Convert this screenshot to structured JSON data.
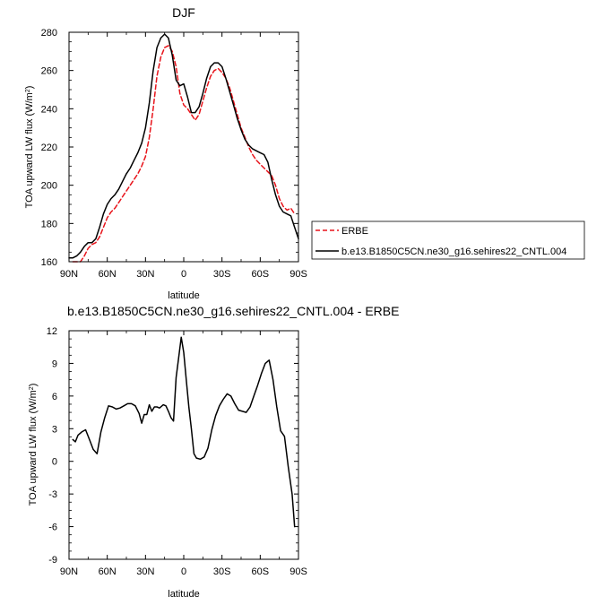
{
  "chart_data": [
    {
      "type": "line",
      "title": "DJF",
      "xlabel": "latitude",
      "ylabel": "TOA upward LW flux (W/m",
      "ylabel_sup": "2",
      "ylabel_close": ")",
      "xlim": [
        -90,
        90
      ],
      "ylim": [
        160,
        280
      ],
      "xticks": [
        -90,
        -60,
        -30,
        0,
        30,
        60,
        90
      ],
      "xtick_labels": [
        "90N",
        "60N",
        "30N",
        "0",
        "30S",
        "60S",
        "90S"
      ],
      "yticks": [
        160,
        180,
        200,
        220,
        240,
        260,
        280
      ],
      "ytick_labels": [
        "160",
        "180",
        "200",
        "220",
        "240",
        "260",
        "280"
      ],
      "legend_position": "right",
      "series": [
        {
          "name": "ERBE",
          "color": "#e8141b",
          "dash": "dashed",
          "x": [
            -87,
            -84,
            -81,
            -78,
            -75,
            -72,
            -69,
            -66,
            -63,
            -60,
            -57,
            -54,
            -51,
            -48,
            -45,
            -42,
            -39,
            -36,
            -33,
            -30,
            -27,
            -24,
            -21,
            -18,
            -15,
            -12,
            -9,
            -6,
            -3,
            0,
            3,
            6,
            9,
            12,
            15,
            18,
            21,
            24,
            27,
            30,
            33,
            36,
            39,
            42,
            45,
            48,
            51,
            54,
            57,
            60,
            63,
            66,
            69,
            72,
            75,
            78,
            81,
            84,
            87
          ],
          "y": [
            160,
            160,
            160,
            163,
            167,
            169,
            170,
            173,
            178,
            183,
            186,
            188,
            191,
            194,
            197,
            200,
            203,
            206,
            210,
            215,
            225,
            240,
            257,
            267,
            272,
            273,
            270,
            262,
            248,
            242,
            240,
            237,
            234,
            237,
            244,
            251,
            257,
            260,
            261,
            259,
            256,
            251,
            244,
            237,
            230,
            225,
            220,
            216,
            213,
            211,
            209,
            207,
            205,
            200,
            193,
            189,
            187,
            188,
            185
          ]
        },
        {
          "name": "b.e13.B1850C5CN.ne30_g16.sehires22_CNTL.004",
          "color": "#000000",
          "dash": "solid",
          "x": [
            -90,
            -87,
            -84,
            -81,
            -78,
            -75,
            -72,
            -69,
            -66,
            -63,
            -60,
            -57,
            -54,
            -51,
            -48,
            -45,
            -42,
            -39,
            -36,
            -33,
            -30,
            -27,
            -24,
            -21,
            -18,
            -15,
            -12,
            -9,
            -6,
            -3,
            0,
            3,
            6,
            9,
            12,
            15,
            18,
            21,
            24,
            27,
            30,
            33,
            36,
            39,
            42,
            45,
            48,
            51,
            54,
            57,
            60,
            63,
            66,
            69,
            72,
            75,
            78,
            81,
            84,
            87,
            90
          ],
          "y": [
            162,
            162,
            163,
            165,
            168,
            170,
            170,
            172,
            178,
            185,
            190,
            193,
            195,
            198,
            202,
            206,
            209,
            213,
            217,
            222,
            230,
            243,
            260,
            272,
            277,
            279,
            277,
            268,
            255,
            252,
            253,
            246,
            238,
            238,
            241,
            248,
            256,
            262,
            264,
            264,
            262,
            256,
            249,
            242,
            235,
            229,
            224,
            221,
            219,
            218,
            217,
            216,
            212,
            203,
            195,
            189,
            186,
            185,
            184,
            178,
            172
          ]
        }
      ]
    },
    {
      "type": "line",
      "title": "b.e13.B1850C5CN.ne30_g16.sehires22_CNTL.004 - ERBE",
      "xlabel": "latitude",
      "ylabel": "TOA upward LW flux (W/m",
      "ylabel_sup": "2",
      "ylabel_close": ")",
      "xlim": [
        -90,
        90
      ],
      "ylim": [
        -9,
        12
      ],
      "xticks": [
        -90,
        -60,
        -30,
        0,
        30,
        60,
        90
      ],
      "xtick_labels": [
        "90N",
        "60N",
        "30N",
        "0",
        "30S",
        "60S",
        "90S"
      ],
      "yticks": [
        -9,
        -6,
        -3,
        0,
        3,
        6,
        9,
        12
      ],
      "ytick_labels": [
        "-9",
        "-6",
        "-3",
        "0",
        "3",
        "6",
        "9",
        "12"
      ],
      "series": [
        {
          "color": "#000000",
          "dash": "solid",
          "x": [
            -87,
            -85,
            -83,
            -80,
            -77,
            -74,
            -71,
            -68,
            -65,
            -62,
            -59,
            -56,
            -53,
            -50,
            -47,
            -44,
            -41,
            -38,
            -35,
            -33,
            -31,
            -29,
            -27,
            -25,
            -23,
            -21,
            -19,
            -16,
            -14,
            -12,
            -10,
            -8,
            -6,
            -4,
            -2,
            0,
            2,
            4,
            6,
            8,
            10,
            13,
            16,
            19,
            22,
            25,
            28,
            31,
            34,
            37,
            40,
            43,
            46,
            49,
            52,
            55,
            58,
            61,
            64,
            67,
            70,
            73,
            76,
            79,
            82,
            85,
            87
          ],
          "y": [
            2.0,
            1.8,
            2.4,
            2.7,
            2.9,
            2.0,
            1.1,
            0.7,
            2.7,
            4.0,
            5.1,
            5.0,
            4.8,
            4.9,
            5.1,
            5.3,
            5.3,
            5.1,
            4.4,
            3.5,
            4.3,
            4.3,
            5.2,
            4.6,
            5.0,
            5.0,
            4.9,
            5.2,
            5.1,
            4.6,
            4.0,
            3.7,
            7.7,
            9.5,
            11.4,
            10.0,
            7.5,
            5.0,
            3.0,
            0.7,
            0.3,
            0.2,
            0.4,
            1.2,
            2.9,
            4.2,
            5.1,
            5.7,
            6.2,
            6.0,
            5.3,
            4.7,
            4.6,
            4.5,
            5.0,
            6.0,
            7.0,
            8.1,
            9.0,
            9.3,
            7.5,
            5.0,
            2.8,
            2.3,
            -0.5,
            -3.0,
            -6.0
          ]
        }
      ]
    }
  ]
}
